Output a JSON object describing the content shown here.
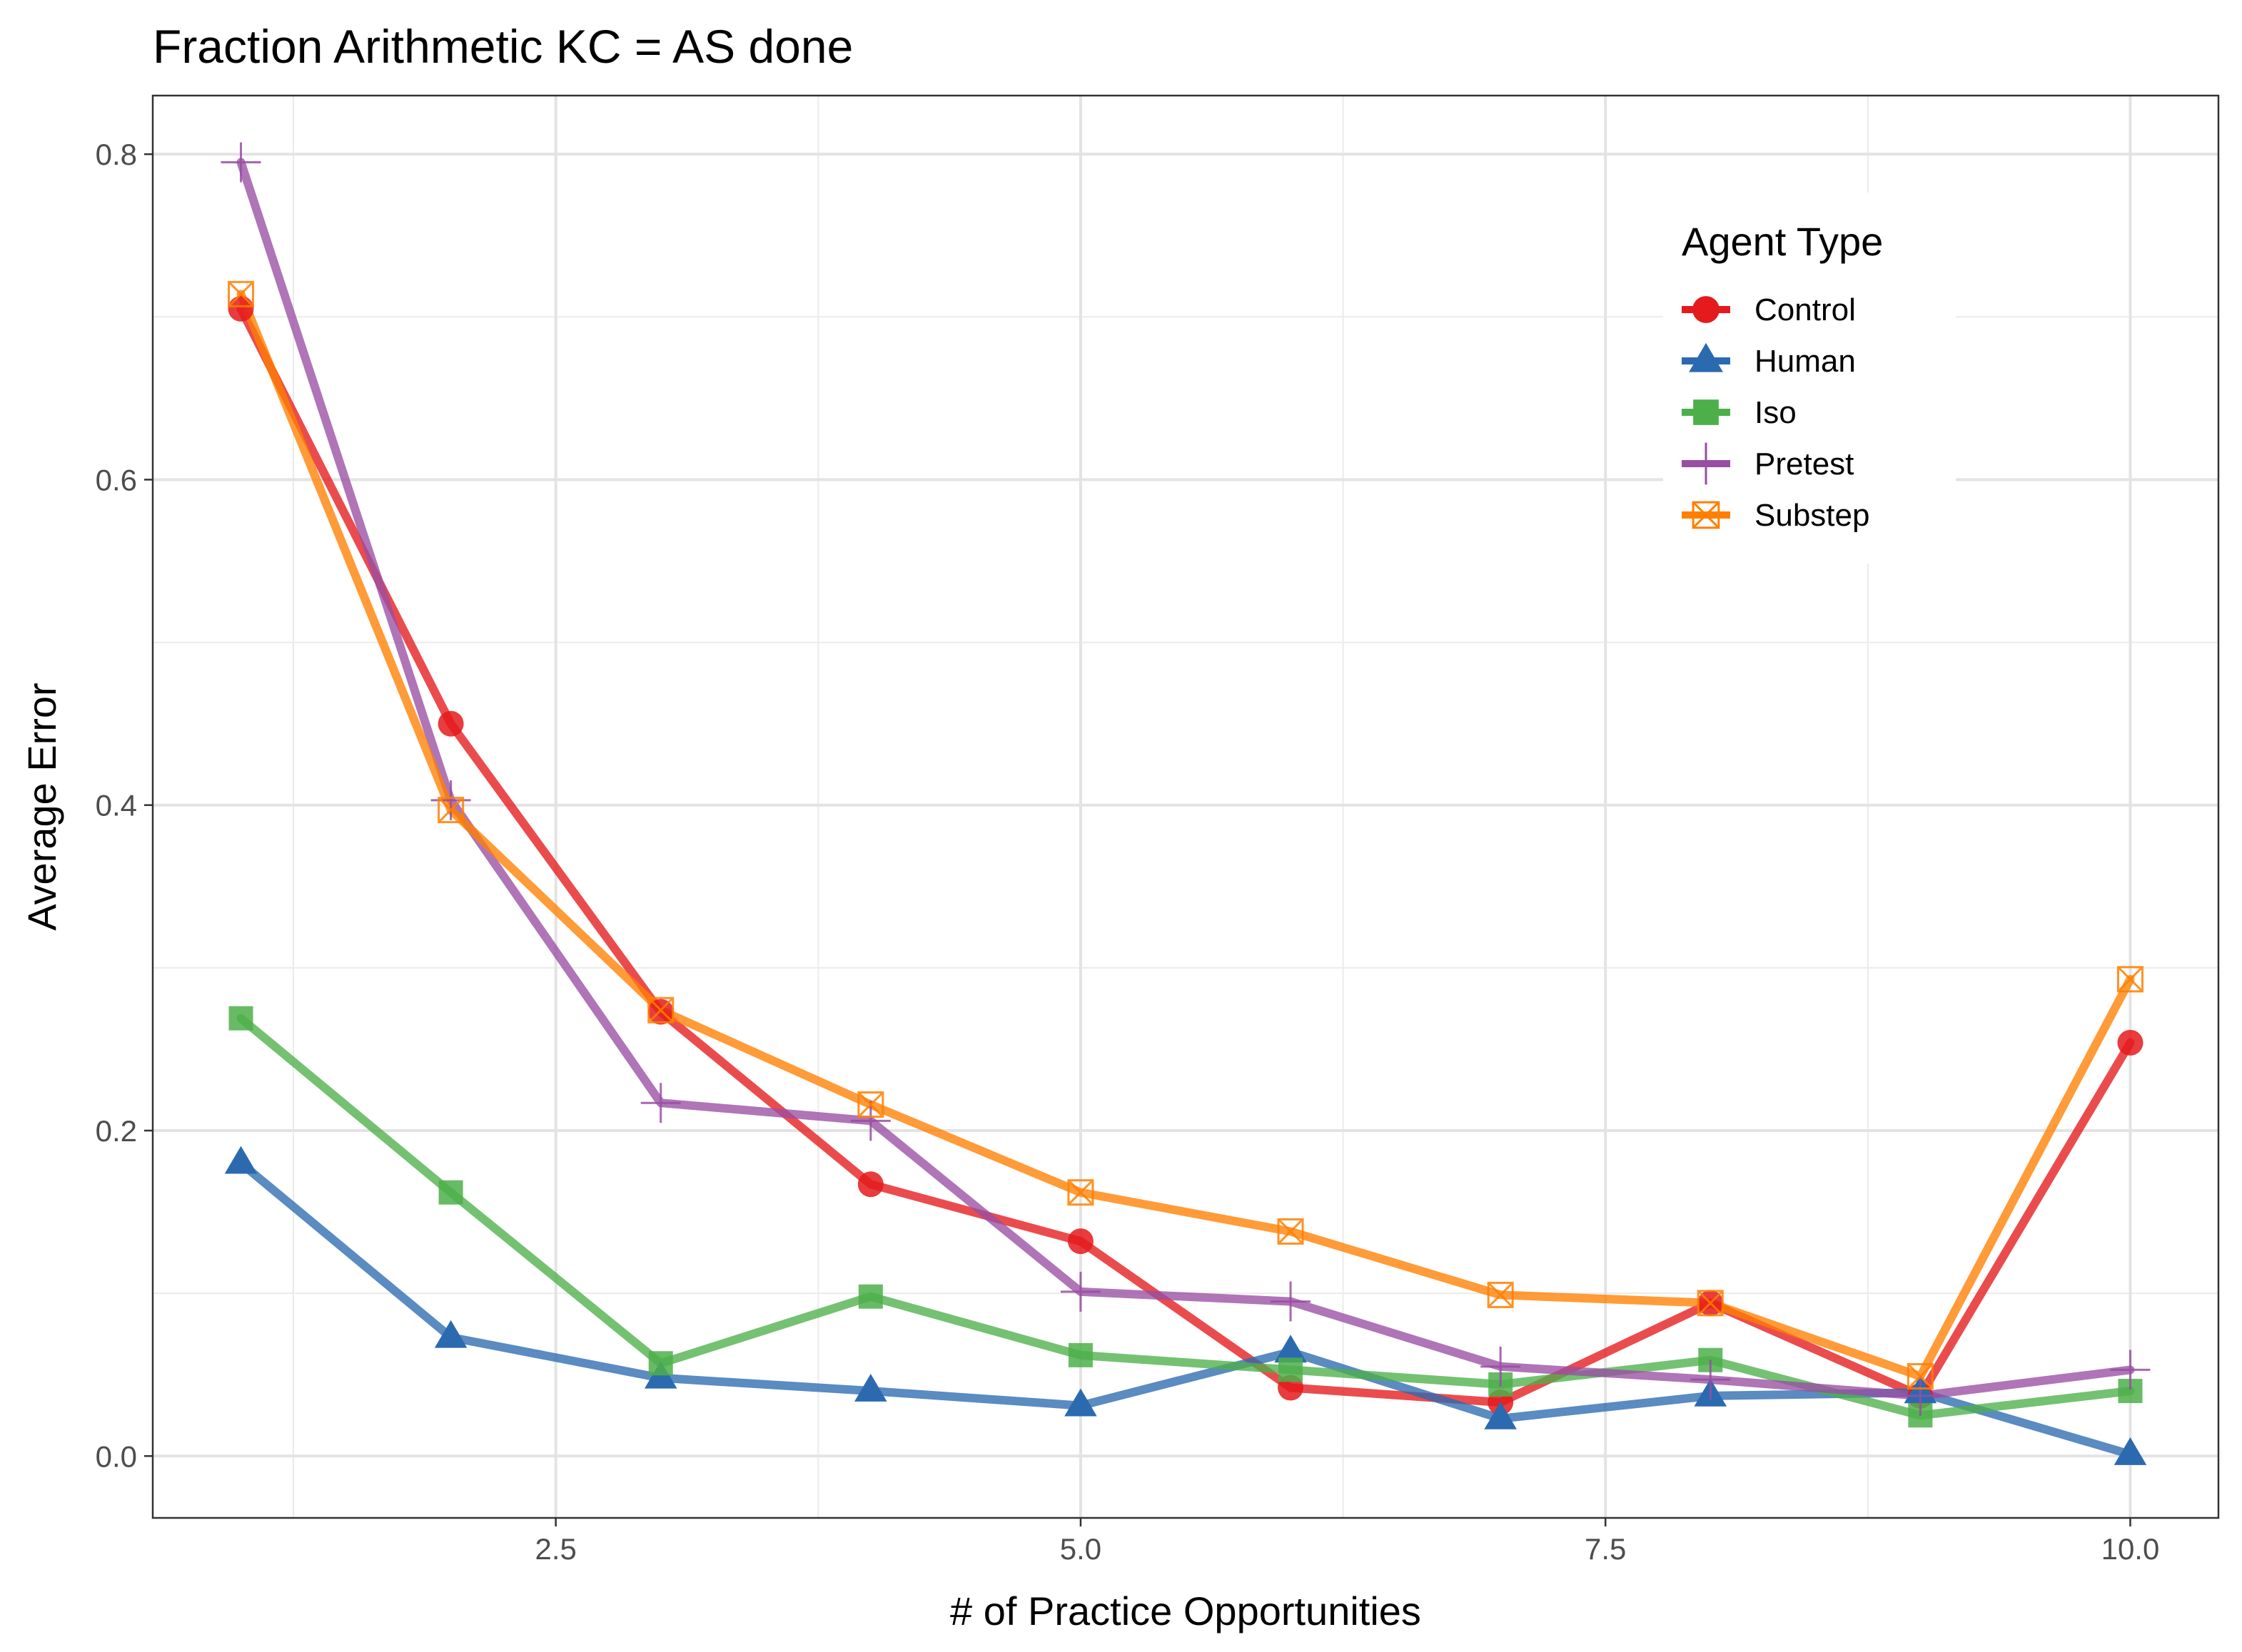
{
  "chart_data": {
    "type": "line",
    "title": "Fraction Arithmetic KC =  AS done",
    "xlabel": "# of Practice Opportunities",
    "ylabel": "Average Error",
    "xlim": [
      0.58,
      10.42
    ],
    "ylim": [
      -0.038,
      0.836
    ],
    "x_ticks": [
      2.5,
      5.0,
      7.5,
      10.0
    ],
    "x_tick_labels": [
      "2.5",
      "5.0",
      "7.5",
      "10.0"
    ],
    "y_ticks": [
      0.0,
      0.2,
      0.4,
      0.6,
      0.8
    ],
    "y_tick_labels": [
      "0.0",
      "0.2",
      "0.4",
      "0.6",
      "0.8"
    ],
    "grid": true,
    "legend": {
      "title": "Agent Type",
      "position": "top-right"
    },
    "x": [
      1,
      2,
      3,
      4,
      5,
      6,
      7,
      8,
      9,
      10
    ],
    "series": [
      {
        "name": "Control",
        "color": "#E41A1C",
        "marker": "circle",
        "values": [
          0.705,
          0.45,
          0.273,
          0.167,
          0.132,
          0.042,
          0.033,
          0.094,
          0.037,
          0.254
        ]
      },
      {
        "name": "Human",
        "color": "#2C6AAF",
        "marker": "triangle",
        "values": [
          0.18,
          0.073,
          0.048,
          0.04,
          0.031,
          0.064,
          0.023,
          0.037,
          0.039,
          0.001
        ]
      },
      {
        "name": "Iso",
        "color": "#4DAF4A",
        "marker": "square",
        "values": [
          0.269,
          0.162,
          0.057,
          0.098,
          0.062,
          0.053,
          0.044,
          0.059,
          0.025,
          0.04
        ]
      },
      {
        "name": "Pretest",
        "color": "#984EA3",
        "marker": "plus",
        "values": [
          0.795,
          0.403,
          0.217,
          0.206,
          0.101,
          0.095,
          0.055,
          0.047,
          0.037,
          0.053
        ]
      },
      {
        "name": "Substep",
        "color": "#FF7F00",
        "marker": "square-x",
        "values": [
          0.714,
          0.397,
          0.274,
          0.216,
          0.162,
          0.138,
          0.099,
          0.094,
          0.049,
          0.293
        ]
      }
    ]
  }
}
